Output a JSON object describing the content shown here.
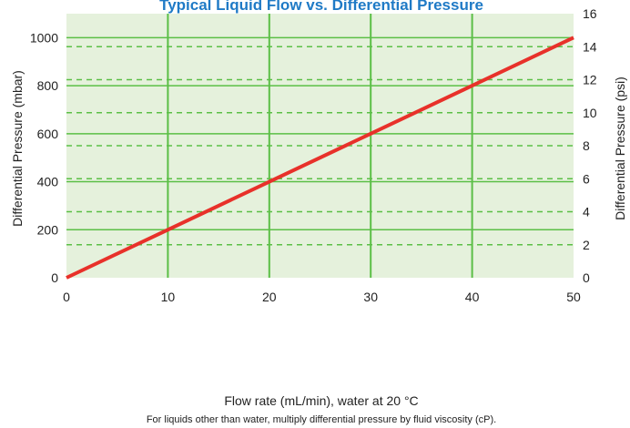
{
  "chart_data": {
    "type": "line",
    "title": "Typical Liquid Flow vs. Differential Pressure",
    "xlabel": "Flow rate (mL/min), water at 20 °C",
    "ylabel": "Differential Pressure (mbar)",
    "y2label": "Differential Pressure (psi)",
    "note": "For liquids other than water, multiply differential pressure by fluid viscosity (cP).",
    "xlim": [
      0,
      50
    ],
    "ylim": [
      0,
      1100
    ],
    "y2lim": [
      0,
      16
    ],
    "x_ticks": [
      0,
      10,
      20,
      30,
      40,
      50
    ],
    "y_ticks": [
      0,
      200,
      400,
      600,
      800,
      1000
    ],
    "y2_ticks": [
      0,
      2,
      4,
      6,
      8,
      10,
      12,
      14,
      16
    ],
    "grid": true,
    "series": [
      {
        "x": [
          0,
          10,
          20,
          30,
          40,
          50
        ],
        "y": [
          0,
          200,
          400,
          600,
          800,
          1000
        ]
      }
    ],
    "colors": {
      "plot_background": "#e5f1dc",
      "grid": "#5bbf46",
      "line": "#e8312a",
      "title": "#1f7ac6"
    }
  }
}
